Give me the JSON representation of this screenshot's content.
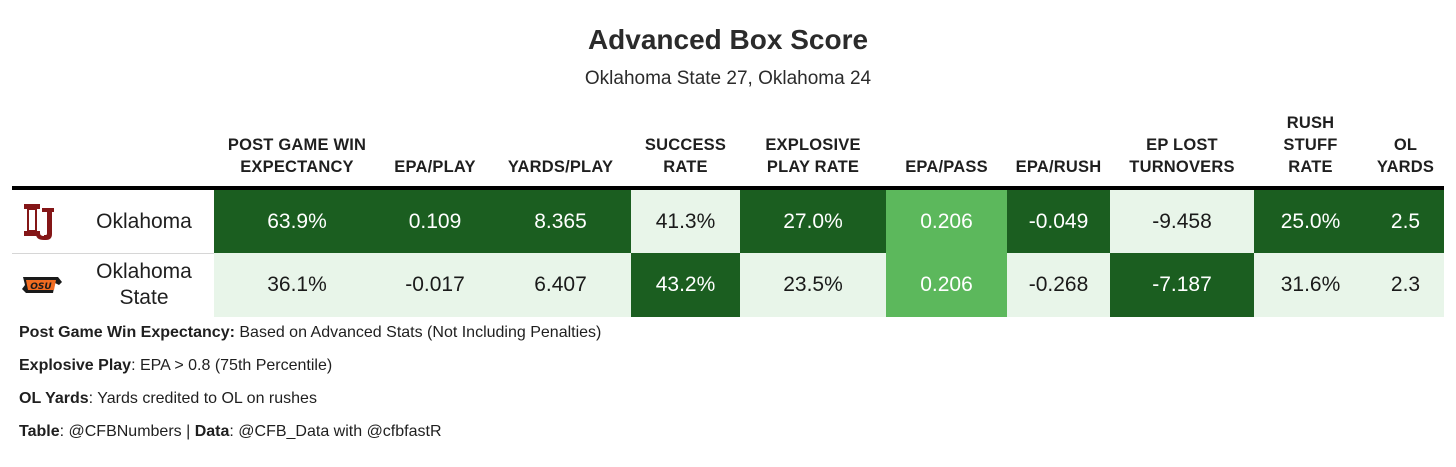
{
  "title": "Advanced Box Score",
  "subtitle": "Oklahoma State 27, Oklahoma 24",
  "colors": {
    "dark": "#1b5e20",
    "medium": "#5cb85c",
    "light": "#e8f5e9"
  },
  "chart_data": {
    "type": "table",
    "columns": [
      "POST GAME WIN EXPECTANCY",
      "EPA/PLAY",
      "YARDS/PLAY",
      "SUCCESS RATE",
      "EXPLOSIVE PLAY RATE",
      "EPA/PASS",
      "EPA/RUSH",
      "EP LOST TURNOVERS",
      "RUSH STUFF RATE",
      "OL YARDS"
    ],
    "rows": [
      {
        "team": "Oklahoma",
        "logo": "oklahoma-logo",
        "values": [
          "63.9%",
          "0.109",
          "8.365",
          "41.3%",
          "27.0%",
          "0.206",
          "-0.049",
          "-9.458",
          "25.0%",
          "2.5"
        ],
        "shades": [
          "dark",
          "dark",
          "dark",
          "light",
          "dark",
          "medium",
          "dark",
          "light",
          "dark",
          "dark"
        ]
      },
      {
        "team": "Oklahoma State",
        "logo": "oklahoma-state-logo",
        "values": [
          "36.1%",
          "-0.017",
          "6.407",
          "43.2%",
          "23.5%",
          "0.206",
          "-0.268",
          "-7.187",
          "31.6%",
          "2.3"
        ],
        "shades": [
          "light",
          "light",
          "light",
          "dark",
          "light",
          "medium",
          "light",
          "dark",
          "light",
          "light"
        ]
      }
    ]
  },
  "notes": [
    {
      "label": "Post Game Win Expectancy:",
      "text": " Based on Advanced Stats (Not Including Penalties)"
    },
    {
      "label": "Explosive Play",
      "text": ": EPA > 0.8 (75th Percentile)"
    },
    {
      "label": "OL Yards",
      "text": ": Yards credited to OL on rushes"
    },
    {
      "label": "Table",
      "text": ": @CFBNumbers | ",
      "label2": "Data",
      "text2": ": @CFB_Data with @cfbfastR"
    }
  ]
}
